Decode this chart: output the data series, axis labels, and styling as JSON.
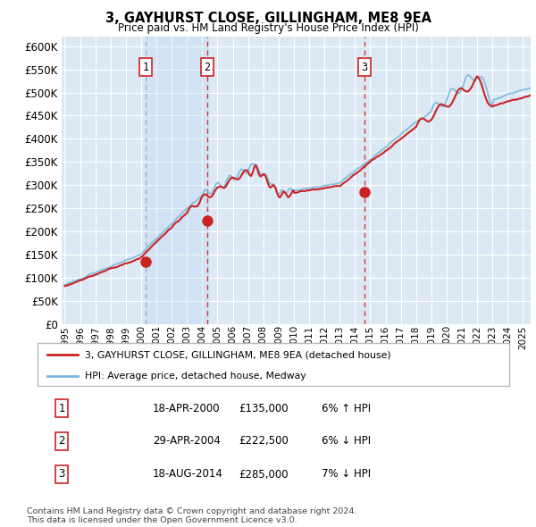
{
  "title": "3, GAYHURST CLOSE, GILLINGHAM, ME8 9EA",
  "subtitle": "Price paid vs. HM Land Registry's House Price Index (HPI)",
  "ylim": [
    0,
    620000
  ],
  "yticks": [
    0,
    50000,
    100000,
    150000,
    200000,
    250000,
    300000,
    350000,
    400000,
    450000,
    500000,
    550000,
    600000
  ],
  "xlim_start": 1994.8,
  "xlim_end": 2025.5,
  "bg_color": "#dce9f5",
  "grid_color": "#ffffff",
  "sale_dates": [
    2000.29,
    2004.33,
    2014.63
  ],
  "sale_prices": [
    135000,
    222500,
    285000
  ],
  "sale_labels": [
    "1",
    "2",
    "3"
  ],
  "shade_between": [
    2000.29,
    2004.33
  ],
  "legend_line1": "3, GAYHURST CLOSE, GILLINGHAM, ME8 9EA (detached house)",
  "legend_line2": "HPI: Average price, detached house, Medway",
  "table_data": [
    [
      "1",
      "18-APR-2000",
      "£135,000",
      "6% ↑ HPI"
    ],
    [
      "2",
      "29-APR-2004",
      "£222,500",
      "6% ↓ HPI"
    ],
    [
      "3",
      "18-AUG-2014",
      "£285,000",
      "7% ↓ HPI"
    ]
  ],
  "footnote": "Contains HM Land Registry data © Crown copyright and database right 2024.\nThis data is licensed under the Open Government Licence v3.0.",
  "hpi_color": "#7ab8d9",
  "price_color": "#cc2222",
  "marker_color": "#cc2222",
  "vline_color_1": "#aaaacc",
  "vline_color_2": "#dd3333"
}
